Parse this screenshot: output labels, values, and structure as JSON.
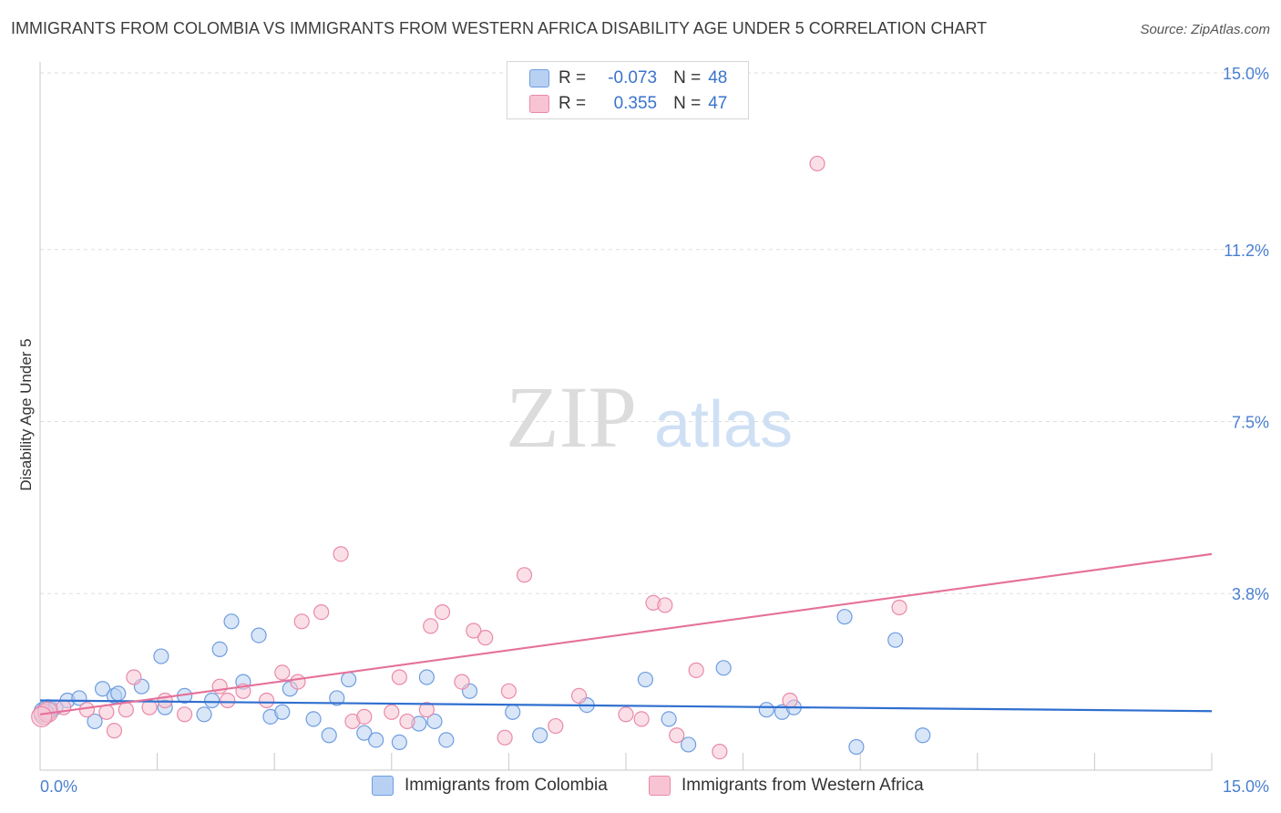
{
  "header": {
    "title": "IMMIGRANTS FROM COLOMBIA VS IMMIGRANTS FROM WESTERN AFRICA DISABILITY AGE UNDER 5 CORRELATION CHART",
    "source": "Source: ZipAtlas.com"
  },
  "watermark": {
    "zip": "ZIP",
    "atlas": "atlas"
  },
  "legend": {
    "rows": [
      {
        "r_label": "R =",
        "r_value": "-0.073",
        "n_label": "N =",
        "n_value": "48"
      },
      {
        "r_label": "R =",
        "r_value": "0.355",
        "n_label": "N =",
        "n_value": "47"
      }
    ]
  },
  "bottom_legend": {
    "colombia": "Immigrants from Colombia",
    "western_africa": "Immigrants from Western Africa"
  },
  "colors": {
    "colombia_fill": "#b8d1f3",
    "colombia_stroke": "#6f9de0",
    "colombia_line": "#2f6fcf",
    "wafrica_fill": "#f8c4d4",
    "wafrica_stroke": "#e98aa9",
    "wafrica_line": "#e5719a",
    "tick_text": "#4a7fd0",
    "grid": "#dddddd"
  },
  "chart_data": {
    "type": "scatter",
    "title": "IMMIGRANTS FROM COLOMBIA VS IMMIGRANTS FROM WESTERN AFRICA DISABILITY AGE UNDER 5 CORRELATION CHART",
    "xlabel": "",
    "ylabel": "Disability Age Under 5",
    "xlim": [
      0,
      15
    ],
    "ylim": [
      0,
      15
    ],
    "x_tick_labels": [
      {
        "value": 0,
        "label": "0.0%"
      },
      {
        "value": 15,
        "label": "15.0%"
      }
    ],
    "y_tick_labels": [
      {
        "value": 3.8,
        "label": "3.8%"
      },
      {
        "value": 7.5,
        "label": "7.5%"
      },
      {
        "value": 11.2,
        "label": "11.2%"
      },
      {
        "value": 15.0,
        "label": "15.0%"
      }
    ],
    "grid": true,
    "legend_position": "top-center",
    "series": [
      {
        "name": "Immigrants from Colombia",
        "r": -0.073,
        "n": 48,
        "trend": {
          "x": [
            0,
            15
          ],
          "y": [
            1.5,
            1.27
          ]
        },
        "points": [
          [
            0.05,
            1.25
          ],
          [
            0.1,
            1.3
          ],
          [
            0.2,
            1.35
          ],
          [
            0.35,
            1.5
          ],
          [
            0.5,
            1.55
          ],
          [
            0.7,
            1.05
          ],
          [
            0.8,
            1.75
          ],
          [
            0.95,
            1.6
          ],
          [
            1.3,
            1.8
          ],
          [
            1.55,
            2.45
          ],
          [
            1.6,
            1.35
          ],
          [
            1.85,
            1.6
          ],
          [
            2.1,
            1.2
          ],
          [
            2.2,
            1.5
          ],
          [
            2.3,
            2.6
          ],
          [
            2.45,
            3.2
          ],
          [
            2.6,
            1.9
          ],
          [
            2.8,
            2.9
          ],
          [
            2.95,
            1.15
          ],
          [
            3.1,
            1.25
          ],
          [
            3.2,
            1.75
          ],
          [
            3.5,
            1.1
          ],
          [
            3.7,
            0.75
          ],
          [
            3.8,
            1.55
          ],
          [
            3.95,
            1.95
          ],
          [
            4.15,
            0.8
          ],
          [
            4.3,
            0.65
          ],
          [
            4.6,
            0.6
          ],
          [
            4.85,
            1.0
          ],
          [
            4.95,
            2.0
          ],
          [
            5.05,
            1.05
          ],
          [
            5.2,
            0.65
          ],
          [
            5.5,
            1.7
          ],
          [
            6.05,
            1.25
          ],
          [
            6.4,
            0.75
          ],
          [
            7.0,
            1.4
          ],
          [
            7.75,
            1.95
          ],
          [
            8.05,
            1.1
          ],
          [
            8.3,
            0.55
          ],
          [
            8.75,
            2.2
          ],
          [
            9.3,
            1.3
          ],
          [
            9.5,
            1.25
          ],
          [
            9.65,
            1.35
          ],
          [
            10.3,
            3.3
          ],
          [
            10.45,
            0.5
          ],
          [
            10.95,
            2.8
          ],
          [
            11.3,
            0.75
          ],
          [
            1.0,
            1.65
          ]
        ]
      },
      {
        "name": "Immigrants from Western Africa",
        "r": 0.355,
        "n": 47,
        "trend": {
          "x": [
            0,
            15
          ],
          "y": [
            1.2,
            4.65
          ]
        },
        "points": [
          [
            0.05,
            1.2
          ],
          [
            0.1,
            1.25
          ],
          [
            0.3,
            1.35
          ],
          [
            0.6,
            1.3
          ],
          [
            0.85,
            1.25
          ],
          [
            0.95,
            0.85
          ],
          [
            1.1,
            1.3
          ],
          [
            1.2,
            2.0
          ],
          [
            1.4,
            1.35
          ],
          [
            1.6,
            1.5
          ],
          [
            1.85,
            1.2
          ],
          [
            2.3,
            1.8
          ],
          [
            2.4,
            1.5
          ],
          [
            2.6,
            1.7
          ],
          [
            2.9,
            1.5
          ],
          [
            3.1,
            2.1
          ],
          [
            3.3,
            1.9
          ],
          [
            3.35,
            3.2
          ],
          [
            3.6,
            3.4
          ],
          [
            3.85,
            4.65
          ],
          [
            4.0,
            1.05
          ],
          [
            4.15,
            1.15
          ],
          [
            4.5,
            1.25
          ],
          [
            4.6,
            2.0
          ],
          [
            4.7,
            1.05
          ],
          [
            4.95,
            1.3
          ],
          [
            5.0,
            3.1
          ],
          [
            5.15,
            3.4
          ],
          [
            5.4,
            1.9
          ],
          [
            5.55,
            3.0
          ],
          [
            5.7,
            2.85
          ],
          [
            5.95,
            0.7
          ],
          [
            6.0,
            1.7
          ],
          [
            6.2,
            4.2
          ],
          [
            6.6,
            0.95
          ],
          [
            6.9,
            1.6
          ],
          [
            7.5,
            1.2
          ],
          [
            7.7,
            1.1
          ],
          [
            7.85,
            3.6
          ],
          [
            8.0,
            3.55
          ],
          [
            8.15,
            0.75
          ],
          [
            8.4,
            2.15
          ],
          [
            8.7,
            0.4
          ],
          [
            9.6,
            1.5
          ],
          [
            9.95,
            13.05
          ],
          [
            11.0,
            3.5
          ],
          [
            0.02,
            1.15
          ]
        ]
      }
    ]
  }
}
